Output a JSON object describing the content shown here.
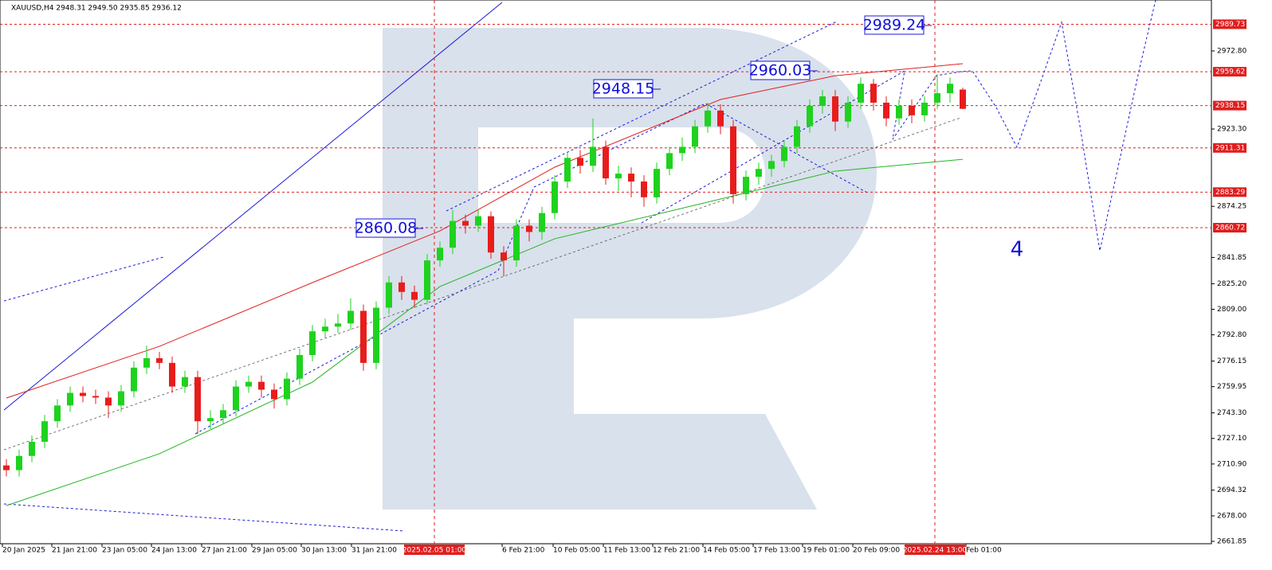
{
  "chart_data": {
    "type": "candlestick",
    "title": "XAUUSD,H4  2948.31 2949.50 2935.85 2936.12",
    "open": [
      2710,
      2707,
      2716,
      2725,
      2738,
      2748,
      2756,
      2754,
      2753,
      2748,
      2757,
      2772,
      2778,
      2775,
      2760,
      2766,
      2738,
      2740,
      2745,
      2760,
      2763,
      2758,
      2752,
      2765,
      2780,
      2795,
      2798,
      2800,
      2808,
      2775,
      2810,
      2826,
      2820,
      2815,
      2840,
      2848,
      2865,
      2862,
      2868,
      2845,
      2840,
      2862,
      2858,
      2870,
      2890,
      2905,
      2900,
      2912,
      2892,
      2895,
      2890,
      2880,
      2898,
      2908,
      2912,
      2925,
      2935,
      2925,
      2882,
      2893,
      2898,
      2903,
      2912,
      2925,
      2938,
      2944,
      2928,
      2940,
      2952,
      2940,
      2930,
      2938,
      2932,
      2940,
      2946,
      2948.31
    ],
    "high": [
      2714,
      2720,
      2729,
      2742,
      2752,
      2760,
      2760,
      2758,
      2757,
      2761,
      2776,
      2786,
      2782,
      2779,
      2770,
      2770,
      2745,
      2749,
      2764,
      2767,
      2767,
      2762,
      2769,
      2784,
      2799,
      2803,
      2806,
      2816,
      2812,
      2814,
      2830,
      2830,
      2824,
      2844,
      2852,
      2872,
      2869,
      2872,
      2871,
      2849,
      2866,
      2866,
      2874,
      2894,
      2909,
      2910,
      2930,
      2916,
      2900,
      2899,
      2894,
      2902,
      2912,
      2918,
      2929,
      2940,
      2939,
      2929,
      2897,
      2902,
      2907,
      2916,
      2929,
      2942,
      2948,
      2948,
      2944,
      2956,
      2955,
      2944,
      2942,
      2942,
      2944,
      2958,
      2956,
      2949.5
    ],
    "low": [
      2703,
      2703,
      2712,
      2721,
      2734,
      2744,
      2750,
      2749,
      2740,
      2744,
      2753,
      2768,
      2771,
      2756,
      2756,
      2730,
      2733,
      2736,
      2741,
      2756,
      2753,
      2746,
      2748,
      2761,
      2776,
      2791,
      2794,
      2796,
      2770,
      2771,
      2806,
      2815,
      2810,
      2812,
      2836,
      2844,
      2857,
      2858,
      2841,
      2830,
      2836,
      2852,
      2853,
      2866,
      2886,
      2895,
      2896,
      2888,
      2884,
      2880,
      2874,
      2876,
      2894,
      2903,
      2908,
      2921,
      2920,
      2876,
      2878,
      2888,
      2893,
      2899,
      2908,
      2921,
      2933,
      2922,
      2924,
      2936,
      2935,
      2925,
      2926,
      2927,
      2928,
      2936,
      2940,
      2935.85
    ],
    "close": [
      2707,
      2716,
      2725,
      2738,
      2748,
      2756,
      2754,
      2753,
      2748,
      2757,
      2772,
      2778,
      2775,
      2760,
      2766,
      2738,
      2740,
      2745,
      2760,
      2763,
      2758,
      2752,
      2765,
      2780,
      2795,
      2798,
      2800,
      2808,
      2775,
      2810,
      2826,
      2820,
      2815,
      2840,
      2848,
      2865,
      2862,
      2868,
      2845,
      2840,
      2862,
      2858,
      2870,
      2890,
      2905,
      2900,
      2912,
      2892,
      2895,
      2890,
      2880,
      2898,
      2908,
      2912,
      2925,
      2935,
      2925,
      2882,
      2893,
      2898,
      2903,
      2912,
      2925,
      2938,
      2944,
      2928,
      2940,
      2952,
      2940,
      2930,
      2938,
      2932,
      2940,
      2946,
      2952,
      2936.12
    ],
    "bull_color": "#1ed21e",
    "bear_color": "#e81c1c",
    "series": [
      {
        "color": "#e01e1e",
        "x": [
          0,
          12,
          24,
          34,
          43,
          56,
          65,
          75
        ],
        "values": [
          2752.7,
          2785.5,
          2825.9,
          2858.7,
          2899.1,
          2942.0,
          2957.1,
          2964.7
        ]
      },
      {
        "color": "#22b422",
        "x": [
          0,
          12,
          24,
          34,
          43,
          56,
          65,
          75
        ],
        "values": [
          2684.5,
          2717.4,
          2762.8,
          2823.4,
          2853.7,
          2878.9,
          2896.6,
          2904.1
        ]
      }
    ],
    "levels": [
      2989.73,
      2959.62,
      2938.15,
      2911.31,
      2883.29,
      2860.72
    ],
    "level_color": "#e01e1e",
    "annotations": [
      "2989.24",
      "2960.03",
      "2948.15",
      "2860.08",
      "4"
    ],
    "ylim": [
      2661.85,
      3005.1
    ],
    "yticks": [
      {
        "value": 2972.8,
        "label": "2972.80"
      },
      {
        "value": 2923.3,
        "label": "2923.30"
      },
      {
        "value": 2874.25,
        "label": "2874.25"
      },
      {
        "value": 2841.85,
        "label": "2841.85"
      },
      {
        "value": 2825.2,
        "label": "2825.20"
      },
      {
        "value": 2809,
        "label": "2809.00"
      },
      {
        "value": 2792.8,
        "label": "2792.80"
      },
      {
        "value": 2776.15,
        "label": "2776.15"
      },
      {
        "value": 2759.95,
        "label": "2759.95"
      },
      {
        "value": 2743.3,
        "label": "2743.30"
      },
      {
        "value": 2727.1,
        "label": "2727.10"
      },
      {
        "value": 2710.9,
        "label": "2710.90"
      },
      {
        "value": 2694.32,
        "label": "2694.32"
      },
      {
        "value": 2678,
        "label": "2678.00"
      },
      {
        "value": 2661.85,
        "label": "2661.85"
      }
    ],
    "x_labels": [
      "20 Jan 2025",
      "21 Jan 21:00",
      "23 Jan 05:00",
      "24 Jan 13:00",
      "27 Jan 21:00",
      "29 Jan 05:00",
      "30 Jan 13:00",
      "31 Jan 21:00",
      "6 Feb 21:00",
      "10 Feb 05:00",
      "11 Feb 13:00",
      "12 Feb 21:00",
      "14 Feb 05:00",
      "17 Feb 13:00",
      "19 Feb 01:00",
      "20 Feb 09:00",
      "Feb 01:00"
    ],
    "cursor_labels": [
      "2025.02.05 01:00",
      "2025.02.24 13:00"
    ]
  }
}
